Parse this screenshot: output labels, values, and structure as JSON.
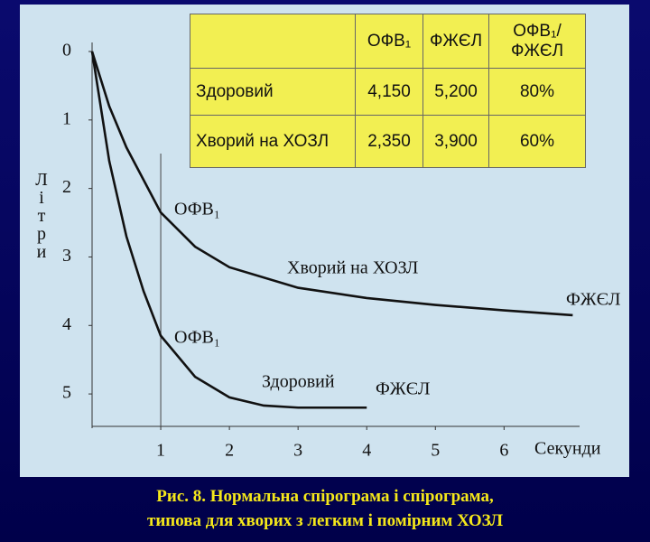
{
  "chart_data": {
    "type": "line",
    "y_inverted": true,
    "xlabel": "Секунди",
    "ylabel": "Літри",
    "xlim": [
      0,
      7.1
    ],
    "ylim": [
      0,
      5.5
    ],
    "xticks": [
      1,
      2,
      3,
      4,
      5,
      6
    ],
    "yticks": [
      0,
      1,
      2,
      3,
      4,
      5
    ],
    "reference_x": 1,
    "series": [
      {
        "name": "Здоровий",
        "color": "#111111",
        "x": [
          0,
          0.25,
          0.5,
          0.75,
          1,
          1.5,
          2,
          2.5,
          3,
          3.5,
          4
        ],
        "values": [
          0,
          1.6,
          2.7,
          3.5,
          4.15,
          4.75,
          5.05,
          5.17,
          5.2,
          5.2,
          5.2
        ]
      },
      {
        "name": "Хворий на ХОЗЛ",
        "color": "#111111",
        "x": [
          0,
          0.25,
          0.5,
          1,
          1.5,
          2,
          3,
          4,
          5,
          6,
          7
        ],
        "values": [
          0,
          0.8,
          1.4,
          2.35,
          2.85,
          3.15,
          3.45,
          3.6,
          3.7,
          3.78,
          3.85
        ]
      }
    ],
    "annotations": [
      "ОФВ₁",
      "ОФВ₁",
      "ФЖЄЛ",
      "ФЖЄЛ"
    ],
    "table": {
      "headers": [
        "ОФВ₁",
        "ФЖЄЛ",
        "ОФВ₁/ФЖЄЛ"
      ],
      "rows": [
        [
          "Здоровий",
          "4,150",
          "5,200",
          "80%"
        ],
        [
          "Хворий на ХОЗЛ",
          "2,350",
          "3,900",
          "60%"
        ]
      ]
    },
    "caption": [
      "Рис. 8. Нормальна спірограма і спірограма,",
      "типова для хворих з легким і помірним ХОЗЛ"
    ]
  }
}
